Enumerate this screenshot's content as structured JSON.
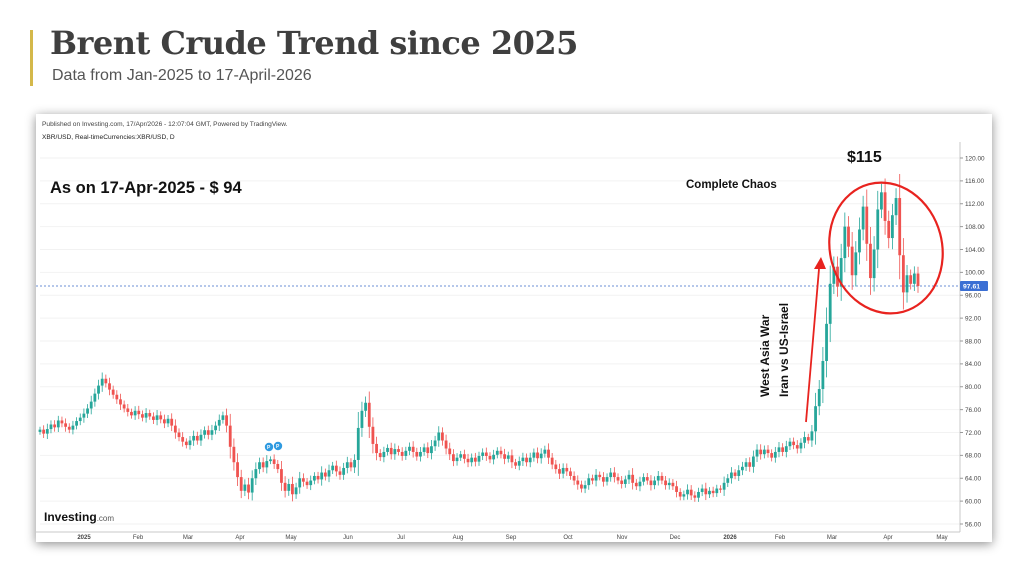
{
  "title": "Brent Crude Trend since 2025",
  "subtitle": "Data from Jan-2025 to 17-April-2026",
  "chart_data": {
    "type": "candlestick",
    "publisher_line": "Published on Investing.com, 17/Apr/2026 - 12:07:04 GMT, Powered by TradingView.",
    "symbol_line": "XBR/USD, Real-timeCurrencies:XBR/USD, D",
    "watermark": "Investing",
    "watermark_suffix": ".com",
    "y_ticks": [
      "56.00",
      "60.00",
      "64.00",
      "68.00",
      "72.00",
      "76.00",
      "80.00",
      "84.00",
      "88.00",
      "92.00",
      "96.00",
      "100.00",
      "104.00",
      "108.00",
      "112.00",
      "116.00",
      "120.00"
    ],
    "x_ticks": [
      "2025",
      "Feb",
      "Mar",
      "Apr",
      "May",
      "Jun",
      "Jul",
      "Aug",
      "Sep",
      "Oct",
      "Nov",
      "Dec",
      "2026",
      "Feb",
      "Mar",
      "Apr",
      "May"
    ],
    "current_price_label": "97.61",
    "current_price": 97.61,
    "ylim": [
      55,
      122
    ],
    "colors": {
      "up": "#26a69a",
      "down": "#ef5350",
      "price_line": "#6b8fd6",
      "price_tag": "#3b6fd4",
      "annotation": "#e8231f"
    },
    "annotations": {
      "as_on": "As on 17-Apr-2025 - $ 94",
      "peak": "$115",
      "chaos": "Complete Chaos",
      "war_line1": "West Asia War",
      "war_line2": "Iran vs US-Israel"
    },
    "series": [
      {
        "name": "XBR/USD",
        "values": [
          72.5,
          71.8,
          72.6,
          73.4,
          72.9,
          74.1,
          73.6,
          73.0,
          72.5,
          73.2,
          74.0,
          74.6,
          75.3,
          76.2,
          77.4,
          78.8,
          80.2,
          81.4,
          80.6,
          79.5,
          78.6,
          77.8,
          76.9,
          76.2,
          75.6,
          75.0,
          75.8,
          75.2,
          74.6,
          75.4,
          74.8,
          74.2,
          75.0,
          74.3,
          73.6,
          74.4,
          73.2,
          72.0,
          71.2,
          70.4,
          69.8,
          70.6,
          71.4,
          70.6,
          71.6,
          72.4,
          71.6,
          72.4,
          73.2,
          74.2,
          75.0,
          73.2,
          69.5,
          66.8,
          64.2,
          61.8,
          62.9,
          61.5,
          64.0,
          65.6,
          66.8,
          65.9,
          67.0,
          67.3,
          66.5,
          65.6,
          63.2,
          61.8,
          63.0,
          61.2,
          62.4,
          64.0,
          63.4,
          62.8,
          63.6,
          64.4,
          63.8,
          65.0,
          64.3,
          65.4,
          66.2,
          65.2,
          64.6,
          65.8,
          66.8,
          65.9,
          67.2,
          72.8,
          75.8,
          77.2,
          73.0,
          70.0,
          68.4,
          67.7,
          68.6,
          69.3,
          68.2,
          69.1,
          68.6,
          67.9,
          68.8,
          69.5,
          68.6,
          67.8,
          68.6,
          69.4,
          68.4,
          69.6,
          70.6,
          72.0,
          70.6,
          69.2,
          68.2,
          67.0,
          67.6,
          68.2,
          67.4,
          66.8,
          67.6,
          66.9,
          67.9,
          68.5,
          67.9,
          67.3,
          68.1,
          68.8,
          68.2,
          67.4,
          68.0,
          66.8,
          66.2,
          67.0,
          67.6,
          66.8,
          67.6,
          68.5,
          67.5,
          68.3,
          69.0,
          67.6,
          66.4,
          65.6,
          64.8,
          65.8,
          65.2,
          64.4,
          63.6,
          62.9,
          62.2,
          62.8,
          64.0,
          63.6,
          64.6,
          64.2,
          63.4,
          64.2,
          65.0,
          64.2,
          63.6,
          63.0,
          63.8,
          64.6,
          63.2,
          62.6,
          63.4,
          64.2,
          63.6,
          62.8,
          63.6,
          64.4,
          63.6,
          62.8,
          63.2,
          62.6,
          61.6,
          60.8,
          61.2,
          62.0,
          61.0,
          60.6,
          61.6,
          62.2,
          61.2,
          61.8,
          61.4,
          62.2,
          62.0,
          63.2,
          64.0,
          65.0,
          64.4,
          65.4,
          66.0,
          66.8,
          66.0,
          67.8,
          69.0,
          68.2,
          69.0,
          68.4,
          67.6,
          68.6,
          69.4,
          68.6,
          69.6,
          70.4,
          69.8,
          69.2,
          70.2,
          71.2,
          70.6,
          72.2,
          76.6,
          79.6,
          84.5,
          91.0,
          98.0,
          101.0,
          97.5,
          102.5,
          108.0,
          104.5,
          99.5,
          103.5,
          107.5,
          111.5,
          105.0,
          99.0,
          104.0,
          111.0,
          114.0,
          109.0,
          106.0,
          110.0,
          113.0,
          103.0,
          96.5,
          99.5,
          98.0,
          99.8,
          97.61
        ]
      }
    ]
  }
}
